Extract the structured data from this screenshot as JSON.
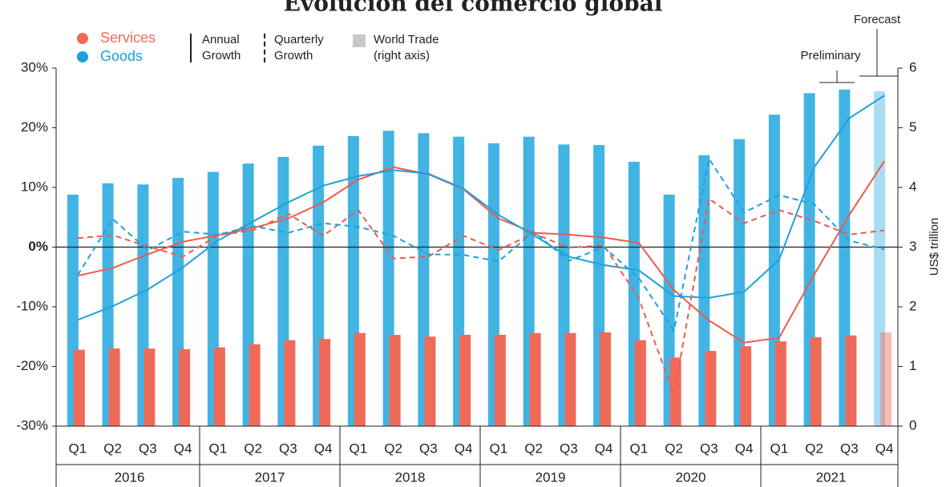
{
  "chart_data": {
    "type": "bar-line",
    "title": "Evolución del comercio global",
    "categories": [
      "Q1",
      "Q2",
      "Q3",
      "Q4",
      "Q1",
      "Q2",
      "Q3",
      "Q4",
      "Q1",
      "Q2",
      "Q3",
      "Q4",
      "Q1",
      "Q2",
      "Q3",
      "Q4",
      "Q1",
      "Q2",
      "Q3",
      "Q4",
      "Q1",
      "Q2",
      "Q3",
      "Q4"
    ],
    "groups": [
      "2016",
      "2017",
      "2018",
      "2019",
      "2020",
      "2021"
    ],
    "ylim": [
      -30,
      30
    ],
    "yticks": [
      {
        "value": -30,
        "label": "-30%"
      },
      {
        "value": -20,
        "label": "-20%"
      },
      {
        "value": -10,
        "label": "-10%"
      },
      {
        "value": 0,
        "label": "0%"
      },
      {
        "value": 10,
        "label": "10%"
      },
      {
        "value": 20,
        "label": "20%"
      },
      {
        "value": 30,
        "label": "30%"
      }
    ],
    "y2lim": [
      0,
      6
    ],
    "y2ticks": [
      0,
      1,
      2,
      3,
      4,
      5,
      6
    ],
    "y2_label": "US$ trillion",
    "legend": {
      "services": "Services",
      "goods": "Goods",
      "annual": "Annual\nGrowth",
      "quarterly": "Quarterly\nGrowth",
      "world": "World Trade\n(right axis)"
    },
    "annotations": [
      "Preliminary",
      "Forecast"
    ],
    "series": [
      {
        "name": "Goods",
        "kind": "bar",
        "axis": "y2",
        "color": "#41b4e4",
        "values": [
          3.88,
          4.07,
          4.05,
          4.16,
          4.26,
          4.4,
          4.51,
          4.7,
          4.86,
          4.95,
          4.91,
          4.85,
          4.74,
          4.85,
          4.72,
          4.71,
          4.43,
          3.88,
          4.54,
          4.81,
          5.22,
          5.58,
          5.64,
          5.61
        ]
      },
      {
        "name": "Services",
        "kind": "bar",
        "axis": "y2",
        "color": "#f06a5a",
        "values": [
          1.28,
          1.3,
          1.3,
          1.29,
          1.32,
          1.37,
          1.44,
          1.46,
          1.56,
          1.53,
          1.5,
          1.53,
          1.53,
          1.56,
          1.56,
          1.57,
          1.44,
          1.15,
          1.26,
          1.34,
          1.42,
          1.49,
          1.52,
          1.57
        ]
      },
      {
        "name": "Services",
        "kind": "line",
        "dash": false,
        "color": "#ef5a4a",
        "values": [
          -4.8,
          -3.5,
          -1.2,
          0.9,
          2.0,
          3.2,
          4.8,
          7.5,
          11.3,
          13.4,
          12.2,
          9.7,
          4.8,
          2.4,
          2.1,
          1.6,
          0.7,
          -7.2,
          -12.3,
          -16.0,
          -15.2,
          -4.6,
          5.4,
          14.4
        ]
      },
      {
        "name": "Goods",
        "kind": "line",
        "dash": false,
        "color": "#1ea0dc",
        "values": [
          -12.2,
          -9.9,
          -7.1,
          -3.4,
          1.1,
          4.3,
          7.5,
          10.3,
          11.9,
          12.9,
          12.3,
          9.8,
          5.4,
          2.0,
          -1.6,
          -3.0,
          -3.9,
          -8.2,
          -8.5,
          -7.5,
          -2.1,
          13.4,
          21.6,
          25.4
        ]
      },
      {
        "name": "Services",
        "kind": "line",
        "dash": true,
        "color": "#ef5a4a",
        "values": [
          1.5,
          2.0,
          0.1,
          -1.6,
          2.0,
          2.8,
          5.6,
          1.9,
          6.2,
          -1.9,
          -1.6,
          1.9,
          -0.5,
          2.3,
          -0.1,
          0.3,
          -8.6,
          -24.7,
          8.1,
          4.0,
          6.2,
          4.4,
          2.1,
          2.8
        ]
      },
      {
        "name": "Goods",
        "kind": "line",
        "dash": true,
        "color": "#1ea0dc",
        "values": [
          -4.7,
          4.7,
          -0.5,
          2.6,
          2.1,
          3.5,
          2.4,
          4.0,
          3.4,
          1.9,
          -1.2,
          -1.3,
          -2.4,
          2.6,
          -2.3,
          0.0,
          -5.2,
          -14.0,
          14.8,
          5.8,
          8.7,
          7.2,
          1.1,
          -0.4
        ]
      }
    ]
  }
}
